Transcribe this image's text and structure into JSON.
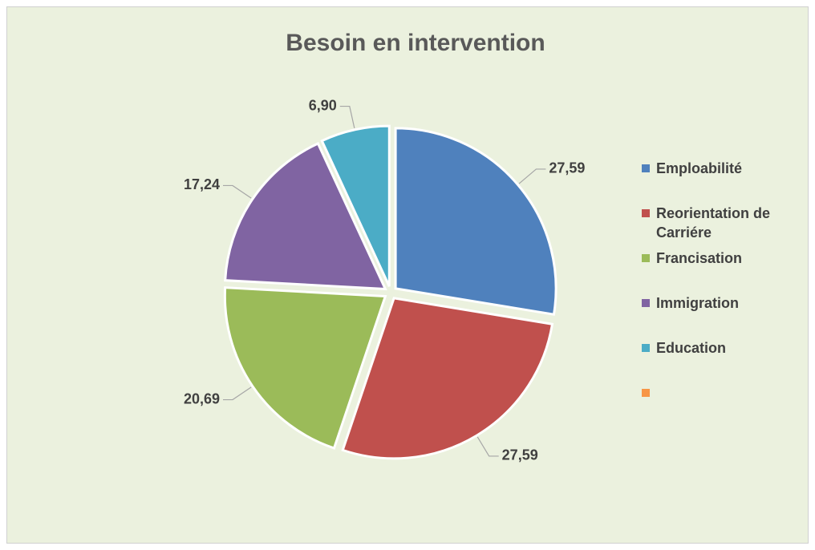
{
  "chart_data": {
    "type": "pie",
    "title": "Besoin en intervention",
    "categories": [
      "Emploabilité",
      "Reorientation de Carriére",
      "Francisation",
      "Immigration",
      "Education",
      null
    ],
    "values": [
      27.59,
      27.59,
      20.69,
      17.24,
      6.9,
      null
    ],
    "value_labels": [
      "27,59",
      "27,59",
      "20,69",
      "17,24",
      "6,90",
      null
    ],
    "colors": [
      "#4f81bd",
      "#c0504d",
      "#9bbb59",
      "#8064a2",
      "#4bacc6",
      "#f79646"
    ],
    "legend": "right"
  }
}
